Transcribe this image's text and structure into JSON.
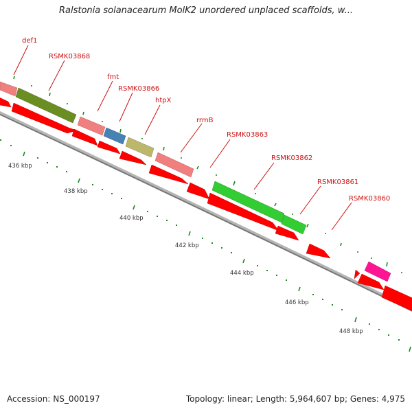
{
  "title": "Ralstonia solanacearum MolK2 unordered unplaced scaffolds, w...",
  "footer": {
    "accession": "Accession: NS_000197",
    "stats": "Topology: linear; Length: 5,964,607 bp; Genes: 4,975"
  },
  "kbp_labels": [
    "436 kbp",
    "438 kbp",
    "440 kbp",
    "442 kbp",
    "444 kbp",
    "446 kbp",
    "448 kbp"
  ],
  "gene_labels": [
    "def1",
    "RSMK03868",
    "fmt",
    "RSMK03866",
    "htpX",
    "rrmB",
    "RSMK03863",
    "RSMK03862",
    "RSMK03861",
    "RSMK03860"
  ],
  "colors": {
    "backbone": "#8a8a8a",
    "forward_gene": "#ff0000",
    "label": "#cc1111",
    "tick": "#1a8a1a",
    "feature_pink": "#f08080",
    "feature_olive": "#6b8e23",
    "feature_blue": "#4682b4",
    "feature_khaki": "#bdb76b",
    "feature_green": "#32cd32",
    "feature_magenta": "#ff1493"
  }
}
